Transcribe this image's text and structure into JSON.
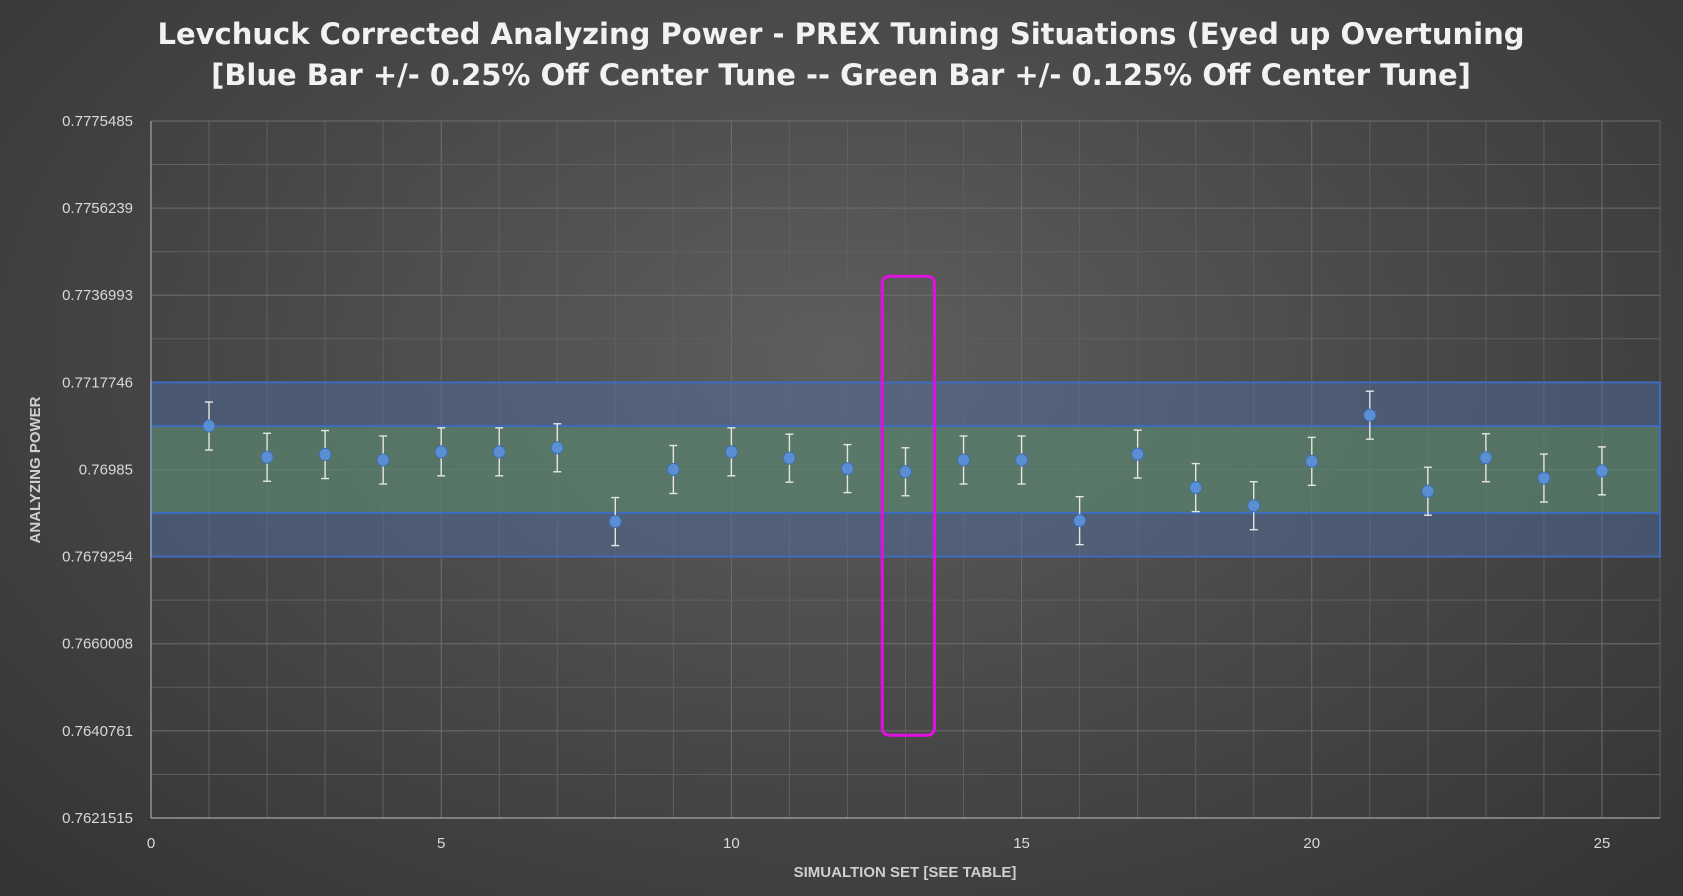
{
  "chart_data": {
    "type": "scatter",
    "title_lines": [
      "Levchuck Corrected Analyzing Power - PREX Tuning Situations (Eyed up Overtuning",
      "[Blue Bar +/- 0.25% Off Center Tune -- Green Bar +/- 0.125% Off Center Tune]"
    ],
    "xlabel": "SIMUALTION SET [SEE TABLE]",
    "ylabel": "ANALYZING POWER",
    "xlim": [
      0,
      26
    ],
    "ylim": [
      0.7621515,
      0.7775485
    ],
    "x_ticks": [
      0,
      5,
      10,
      15,
      20,
      25
    ],
    "x_tick_labels": [
      "0",
      "5",
      "10",
      "15",
      "20",
      "25"
    ],
    "y_ticks": [
      0.7621515,
      0.7640761,
      0.7660008,
      0.7679254,
      0.76985,
      0.7717746,
      0.7736993,
      0.7756239,
      0.7775485
    ],
    "y_tick_labels": [
      "0.7621515",
      "0.7640761",
      "0.7660008",
      "0.7679254",
      "0.76985",
      "0.7717746",
      "0.7736993",
      "0.7756239",
      "0.7775485"
    ],
    "grid": true,
    "bands": [
      {
        "name": "Blue Bar",
        "y0": 0.7679254,
        "y1": 0.7717746,
        "color": "#4f6fa8"
      },
      {
        "name": "Green Bar",
        "y0": 0.76889,
        "y1": 0.77081,
        "color": "#5f8a5a"
      }
    ],
    "highlight_box": {
      "x0": 12.6,
      "x1": 13.5,
      "y0": 0.76398,
      "y1": 0.77412,
      "color": "#e010e0"
    },
    "series": [
      {
        "x": [
          1,
          2,
          3,
          4,
          5,
          6,
          7,
          8,
          9,
          10,
          11,
          12,
          13,
          14,
          15,
          16,
          17,
          18,
          19,
          20,
          21,
          22,
          23,
          24,
          25
        ],
        "y": [
          0.77081,
          0.77012,
          0.77018,
          0.77006,
          0.77024,
          0.77024,
          0.77033,
          0.7687,
          0.76985,
          0.77024,
          0.7701,
          0.76987,
          0.7698,
          0.77006,
          0.77006,
          0.76872,
          0.77019,
          0.76945,
          0.76905,
          0.77003,
          0.77105,
          0.76937,
          0.77011,
          0.76966,
          0.76982
        ],
        "error": [
          0.00053,
          0.00053,
          0.00053,
          0.00053,
          0.00053,
          0.00053,
          0.00053,
          0.00053,
          0.00053,
          0.00053,
          0.00053,
          0.00053,
          0.00053,
          0.00053,
          0.00053,
          0.00053,
          0.00053,
          0.00053,
          0.00053,
          0.00053,
          0.00053,
          0.00053,
          0.00053,
          0.00053,
          0.00053
        ],
        "color": "#5b8fd4"
      }
    ]
  }
}
